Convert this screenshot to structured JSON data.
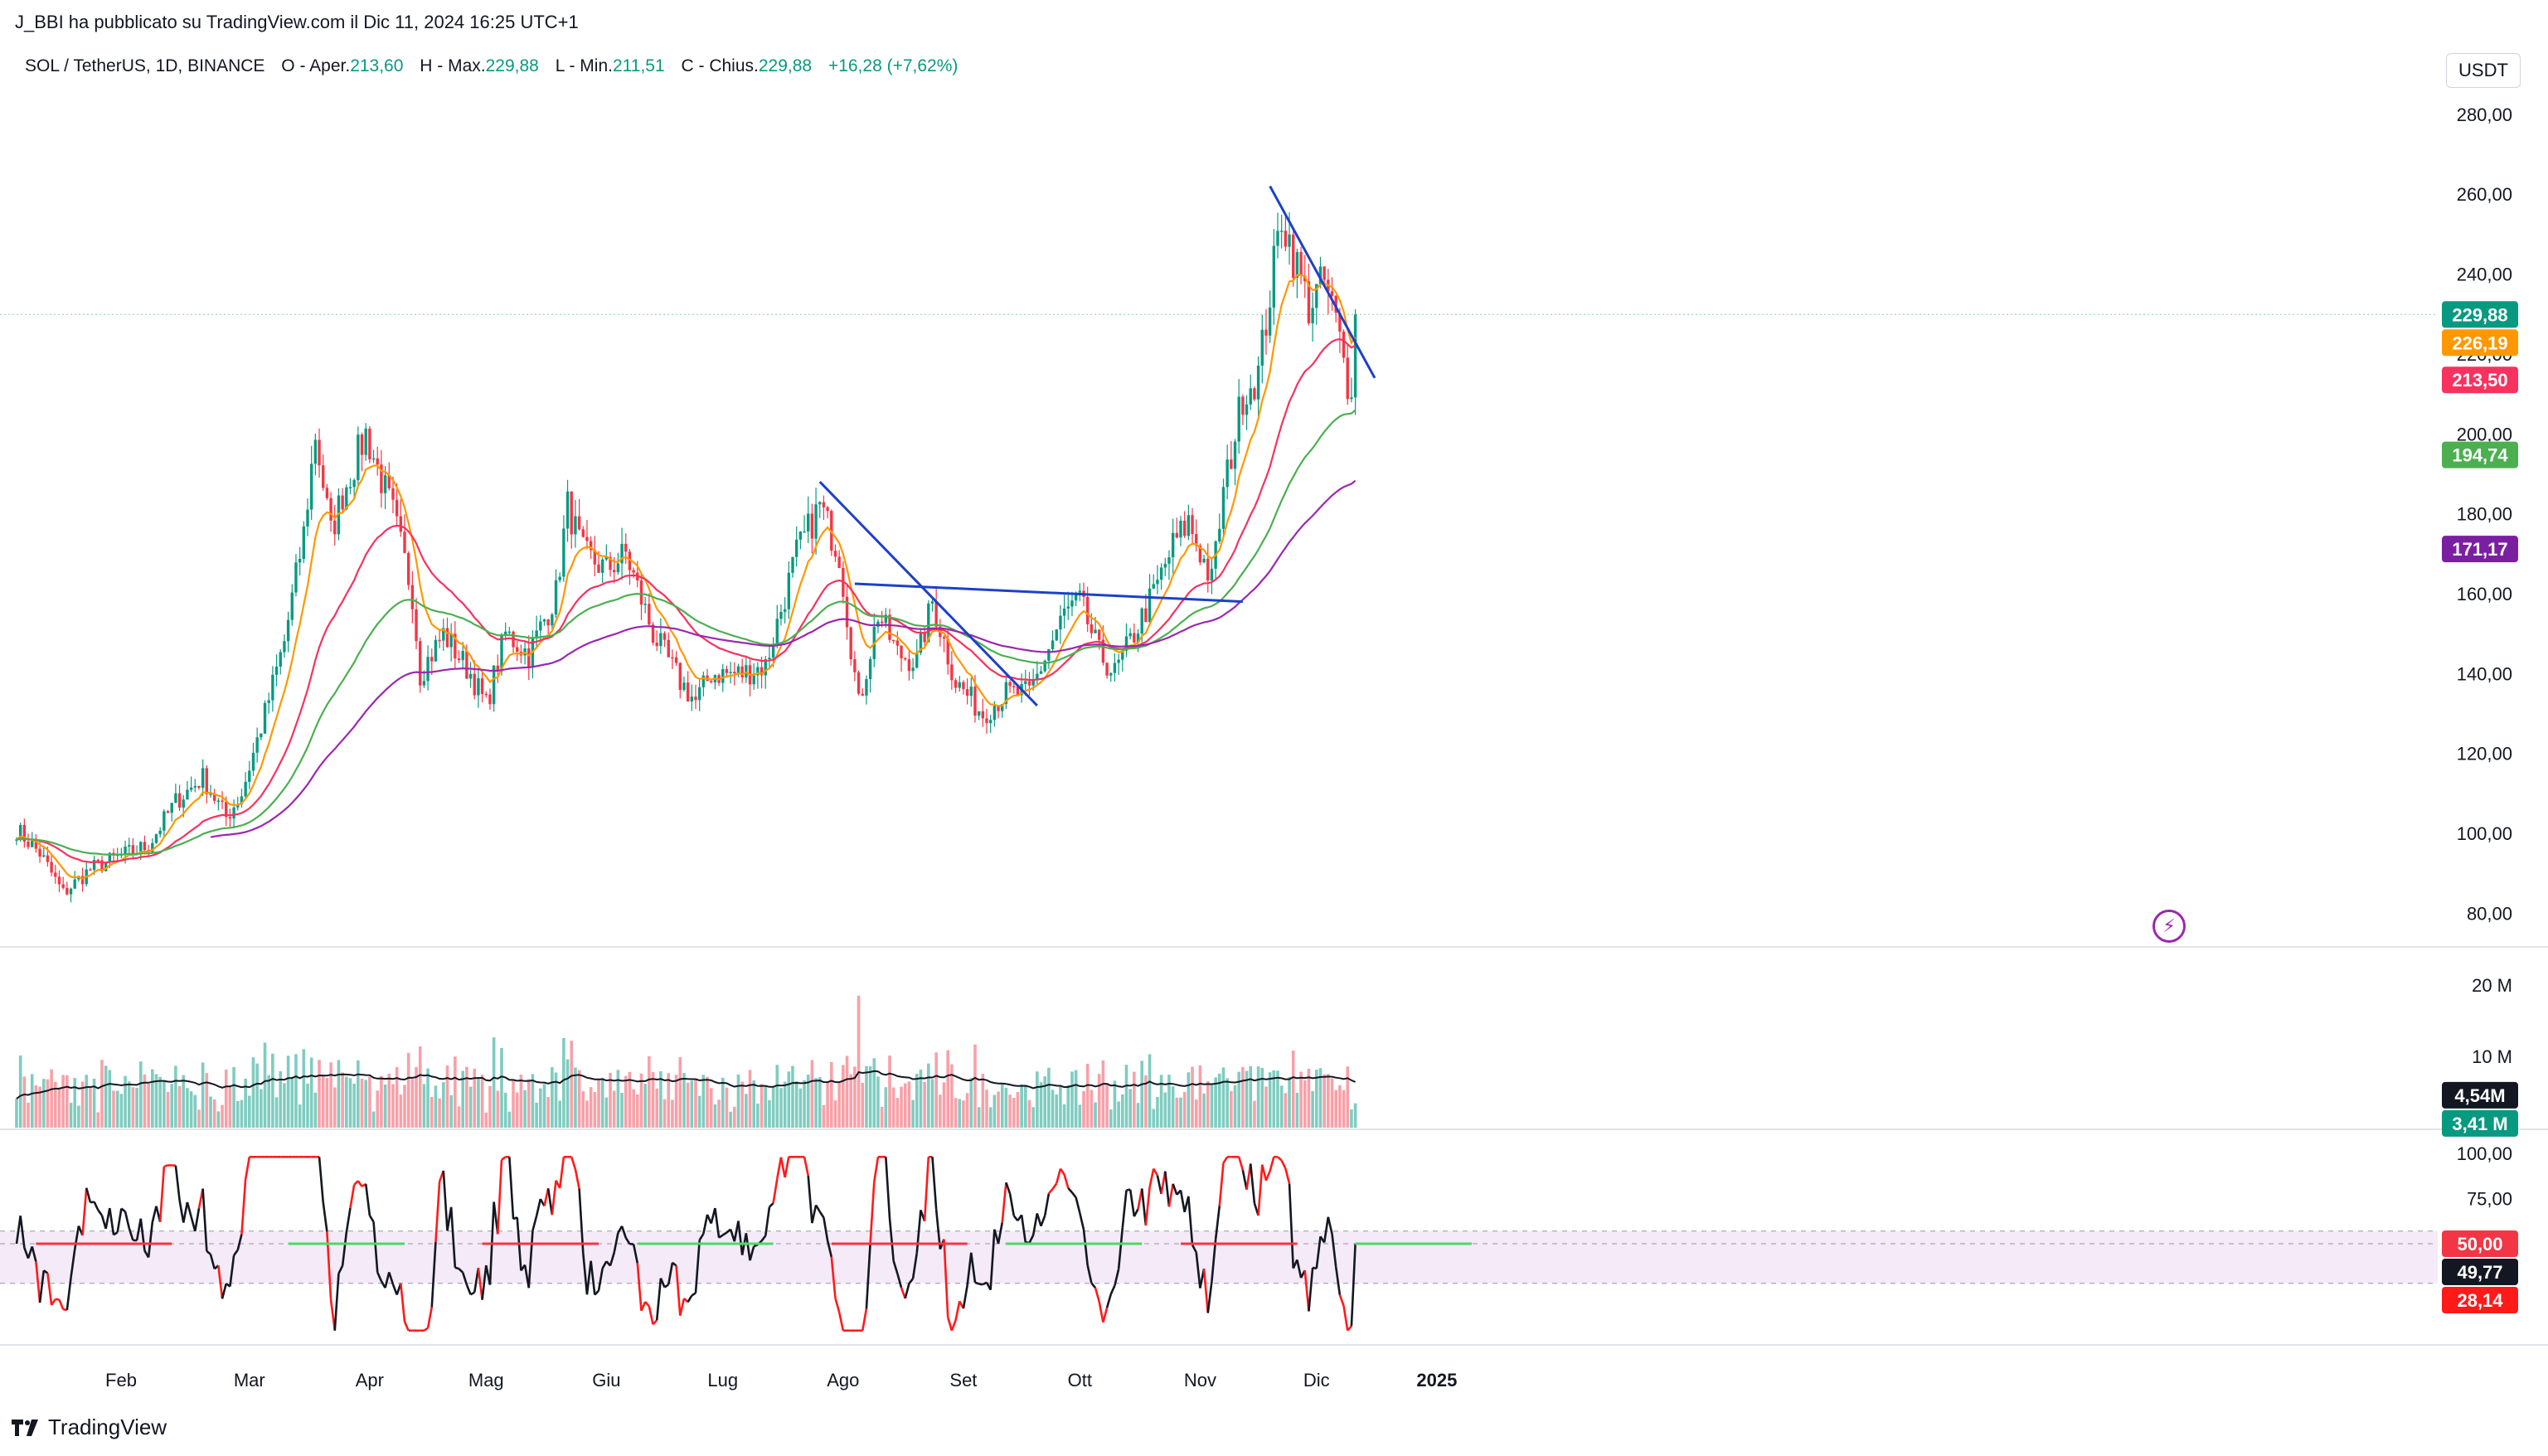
{
  "header": {
    "published": "J_BBI ha pubblicato su TradingView.com il Dic 11, 2024 16:25 UTC+1",
    "symbol": "SOL / TetherUS, 1D, BINANCE",
    "open_label": "O",
    "open_text": "Aper.",
    "open": "213,60",
    "high_label": "H",
    "high_text": "Max.",
    "high": "229,88",
    "low_label": "L",
    "low_text": "Min.",
    "low": "211,51",
    "close_label": "C",
    "close_text": "Chius.",
    "close": "229,88",
    "change": "+16,28 (+7,62%)"
  },
  "currency": "USDT",
  "brand": "TradingView",
  "colors": {
    "up": "#089981",
    "down": "#f23645",
    "ema_fast": "#ff9800",
    "ema_mid": "#f7325f",
    "ema_slow": "#4caf50",
    "ema_long": "#9c27b0",
    "trendline": "#1e40c8"
  },
  "chart_data": [
    {
      "type": "candlestick",
      "panel": "price",
      "x_labels": [
        "Feb",
        "Mar",
        "Apr",
        "Mag",
        "Giu",
        "Lug",
        "Ago",
        "Set",
        "Ott",
        "Nov",
        "Dic",
        "2025"
      ],
      "y_ticks": [
        "280,00",
        "260,00",
        "240,00",
        "220,00",
        "200,00",
        "180,00",
        "160,00",
        "140,00",
        "120,00",
        "100,00",
        "80,00"
      ],
      "ylim": [
        72,
        292
      ],
      "anchors": [
        [
          "2024-01-01",
          101
        ],
        [
          "2024-01-07",
          95
        ],
        [
          "2024-01-13",
          85
        ],
        [
          "2024-01-20",
          91
        ],
        [
          "2024-01-27",
          94
        ],
        [
          "2024-02-04",
          97
        ],
        [
          "2024-02-11",
          108
        ],
        [
          "2024-02-18",
          114
        ],
        [
          "2024-02-24",
          104
        ],
        [
          "2024-02-28",
          110
        ],
        [
          "2024-03-05",
          130
        ],
        [
          "2024-03-10",
          148
        ],
        [
          "2024-03-15",
          175
        ],
        [
          "2024-03-18",
          200
        ],
        [
          "2024-03-22",
          175
        ],
        [
          "2024-03-25",
          185
        ],
        [
          "2024-03-31",
          200
        ],
        [
          "2024-04-07",
          180
        ],
        [
          "2024-04-12",
          160
        ],
        [
          "2024-04-14",
          140
        ],
        [
          "2024-04-20",
          150
        ],
        [
          "2024-04-27",
          140
        ],
        [
          "2024-05-01",
          132
        ],
        [
          "2024-05-06",
          150
        ],
        [
          "2024-05-12",
          145
        ],
        [
          "2024-05-19",
          160
        ],
        [
          "2024-05-22",
          182
        ],
        [
          "2024-05-26",
          170
        ],
        [
          "2024-06-01",
          166
        ],
        [
          "2024-06-06",
          170
        ],
        [
          "2024-06-13",
          150
        ],
        [
          "2024-06-20",
          138
        ],
        [
          "2024-06-24",
          133
        ],
        [
          "2024-06-28",
          140
        ],
        [
          "2024-07-06",
          140
        ],
        [
          "2024-07-12",
          142
        ],
        [
          "2024-07-20",
          170
        ],
        [
          "2024-07-26",
          182
        ],
        [
          "2024-07-31",
          170
        ],
        [
          "2024-08-05",
          132
        ],
        [
          "2024-08-10",
          155
        ],
        [
          "2024-08-15",
          145
        ],
        [
          "2024-08-20",
          143
        ],
        [
          "2024-08-24",
          158
        ],
        [
          "2024-08-30",
          138
        ],
        [
          "2024-09-06",
          130
        ],
        [
          "2024-09-12",
          135
        ],
        [
          "2024-09-18",
          135
        ],
        [
          "2024-09-27",
          155
        ],
        [
          "2024-10-01",
          158
        ],
        [
          "2024-10-06",
          145
        ],
        [
          "2024-10-10",
          140
        ],
        [
          "2024-10-14",
          148
        ],
        [
          "2024-10-20",
          160
        ],
        [
          "2024-10-25",
          172
        ],
        [
          "2024-10-29",
          178
        ],
        [
          "2024-11-04",
          163
        ],
        [
          "2024-11-07",
          185
        ],
        [
          "2024-11-12",
          210
        ],
        [
          "2024-11-16",
          215
        ],
        [
          "2024-11-22",
          255
        ],
        [
          "2024-11-25",
          245
        ],
        [
          "2024-11-29",
          232
        ],
        [
          "2024-12-03",
          238
        ],
        [
          "2024-12-06",
          228
        ],
        [
          "2024-12-09",
          213
        ],
        [
          "2024-12-10",
          214
        ],
        [
          "2024-12-11",
          229.88
        ]
      ],
      "last_close": 229.88,
      "price_labels": [
        {
          "value": 229.88,
          "text": "229,88",
          "color": "#089981"
        },
        {
          "value": 226.19,
          "text": "226,19",
          "color": "#ff9800"
        },
        {
          "value": 213.5,
          "text": "213,50",
          "color": "#f7325f"
        },
        {
          "value": 194.74,
          "text": "194,74",
          "color": "#4caf50"
        },
        {
          "value": 171.17,
          "text": "171,17",
          "color": "#7b1fa2"
        }
      ],
      "trendlines": [
        {
          "from": [
            "2024-07-26",
            188
          ],
          "to": [
            "2024-09-20",
            132
          ]
        },
        {
          "from": [
            "2024-08-04",
            162.5
          ],
          "to": [
            "2024-11-12",
            158
          ]
        },
        {
          "from": [
            "2024-11-19",
            262
          ],
          "to": [
            "2024-12-16",
            214
          ]
        }
      ]
    },
    {
      "type": "bar",
      "panel": "volume",
      "y_ticks": [
        "20 M",
        "10 M"
      ],
      "ylim": [
        0,
        21.5
      ],
      "labels": [
        {
          "value": 4.54,
          "text": "4,54M",
          "color": "#131722"
        },
        {
          "value": 3.41,
          "text": "3,41 M",
          "color": "#089981"
        }
      ],
      "spikes": [
        [
          "2024-08-05",
          18.5
        ],
        [
          "2024-04-13",
          8.5
        ],
        [
          "2024-03-19",
          9.5
        ],
        [
          "2024-11-12",
          8.5
        ]
      ]
    },
    {
      "type": "line",
      "panel": "oscillator",
      "y_ticks": [
        "100,00",
        "75,00"
      ],
      "ylim": [
        -5,
        105
      ],
      "band": [
        28.14,
        57
      ],
      "labels": [
        {
          "value": 50,
          "text": "50,00",
          "color": "#f23645"
        },
        {
          "value": 49.77,
          "text": "49,77",
          "color": "#131722"
        },
        {
          "value": 28.14,
          "text": "28,14",
          "color": "#ff1a1a"
        }
      ]
    }
  ]
}
